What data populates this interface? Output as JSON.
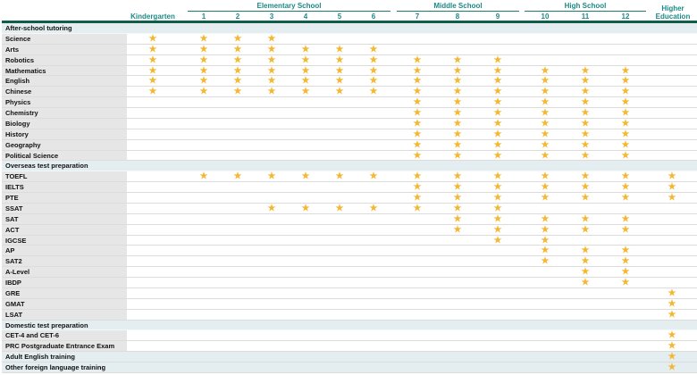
{
  "header": {
    "groups": [
      {
        "label": "Elementary School"
      },
      {
        "label": "Middle School"
      },
      {
        "label": "High School"
      }
    ],
    "columns": [
      "Kindergarten",
      "1",
      "2",
      "3",
      "4",
      "5",
      "6",
      "7",
      "8",
      "9",
      "10",
      "11",
      "12",
      "Higher Education"
    ],
    "higher_line1": "Higher",
    "higher_line2": "Education"
  },
  "colors": {
    "star": "#f5b731",
    "header_text": "#1b8a85",
    "rule": "#0f5e4c",
    "group_bg": "#e4eef0",
    "label_bg": "#e6e6e6"
  },
  "star_icon": "star-icon",
  "rows": [
    {
      "type": "group",
      "label": "After-school tutoring",
      "stars": []
    },
    {
      "label": "Science",
      "stars": [
        "Kindergarten",
        "1",
        "2",
        "3"
      ]
    },
    {
      "label": "Arts",
      "stars": [
        "Kindergarten",
        "1",
        "2",
        "3",
        "4",
        "5",
        "6"
      ]
    },
    {
      "label": "Robotics",
      "stars": [
        "Kindergarten",
        "1",
        "2",
        "3",
        "4",
        "5",
        "6",
        "7",
        "8",
        "9"
      ]
    },
    {
      "label": "Mathematics",
      "stars": [
        "Kindergarten",
        "1",
        "2",
        "3",
        "4",
        "5",
        "6",
        "7",
        "8",
        "9",
        "10",
        "11",
        "12"
      ]
    },
    {
      "label": "English",
      "stars": [
        "Kindergarten",
        "1",
        "2",
        "3",
        "4",
        "5",
        "6",
        "7",
        "8",
        "9",
        "10",
        "11",
        "12"
      ]
    },
    {
      "label": "Chinese",
      "stars": [
        "Kindergarten",
        "1",
        "2",
        "3",
        "4",
        "5",
        "6",
        "7",
        "8",
        "9",
        "10",
        "11",
        "12"
      ]
    },
    {
      "label": "Physics",
      "stars": [
        "7",
        "8",
        "9",
        "10",
        "11",
        "12"
      ]
    },
    {
      "label": "Chemistry",
      "stars": [
        "7",
        "8",
        "9",
        "10",
        "11",
        "12"
      ]
    },
    {
      "label": "Biology",
      "stars": [
        "7",
        "8",
        "9",
        "10",
        "11",
        "12"
      ]
    },
    {
      "label": "History",
      "stars": [
        "7",
        "8",
        "9",
        "10",
        "11",
        "12"
      ]
    },
    {
      "label": "Geography",
      "stars": [
        "7",
        "8",
        "9",
        "10",
        "11",
        "12"
      ]
    },
    {
      "label": "Political Science",
      "stars": [
        "7",
        "8",
        "9",
        "10",
        "11",
        "12"
      ]
    },
    {
      "type": "group",
      "label": "Overseas test preparation",
      "stars": []
    },
    {
      "label": "TOEFL",
      "stars": [
        "1",
        "2",
        "3",
        "4",
        "5",
        "6",
        "7",
        "8",
        "9",
        "10",
        "11",
        "12",
        "Higher Education"
      ]
    },
    {
      "label": "IELTS",
      "stars": [
        "7",
        "8",
        "9",
        "10",
        "11",
        "12",
        "Higher Education"
      ]
    },
    {
      "label": "PTE",
      "stars": [
        "7",
        "8",
        "9",
        "10",
        "11",
        "12",
        "Higher Education"
      ]
    },
    {
      "label": "SSAT",
      "stars": [
        "3",
        "4",
        "5",
        "6",
        "7",
        "8",
        "9"
      ]
    },
    {
      "label": "SAT",
      "stars": [
        "8",
        "9",
        "10",
        "11",
        "12"
      ]
    },
    {
      "label": "ACT",
      "stars": [
        "8",
        "9",
        "10",
        "11",
        "12"
      ]
    },
    {
      "label": "IGCSE",
      "stars": [
        "9",
        "10"
      ]
    },
    {
      "label": "AP",
      "stars": [
        "10",
        "11",
        "12"
      ]
    },
    {
      "label": "SAT2",
      "stars": [
        "10",
        "11",
        "12"
      ]
    },
    {
      "label": "A-Level",
      "stars": [
        "11",
        "12"
      ]
    },
    {
      "label": "IBDP",
      "stars": [
        "11",
        "12"
      ]
    },
    {
      "label": "GRE",
      "stars": [
        "Higher Education"
      ]
    },
    {
      "label": "GMAT",
      "stars": [
        "Higher Education"
      ]
    },
    {
      "label": "LSAT",
      "stars": [
        "Higher Education"
      ]
    },
    {
      "type": "group",
      "label": "Domestic test preparation",
      "stars": []
    },
    {
      "label": "CET-4 and CET-6",
      "stars": [
        "Higher Education"
      ]
    },
    {
      "label": "PRC Postgraduate Entrance Exam",
      "stars": [
        "Higher Education"
      ]
    },
    {
      "type": "highlight",
      "label": "Adult English training",
      "stars": [
        "Higher Education"
      ]
    },
    {
      "type": "highlight",
      "label": "Other foreign language training",
      "stars": [
        "Higher Education"
      ]
    }
  ]
}
